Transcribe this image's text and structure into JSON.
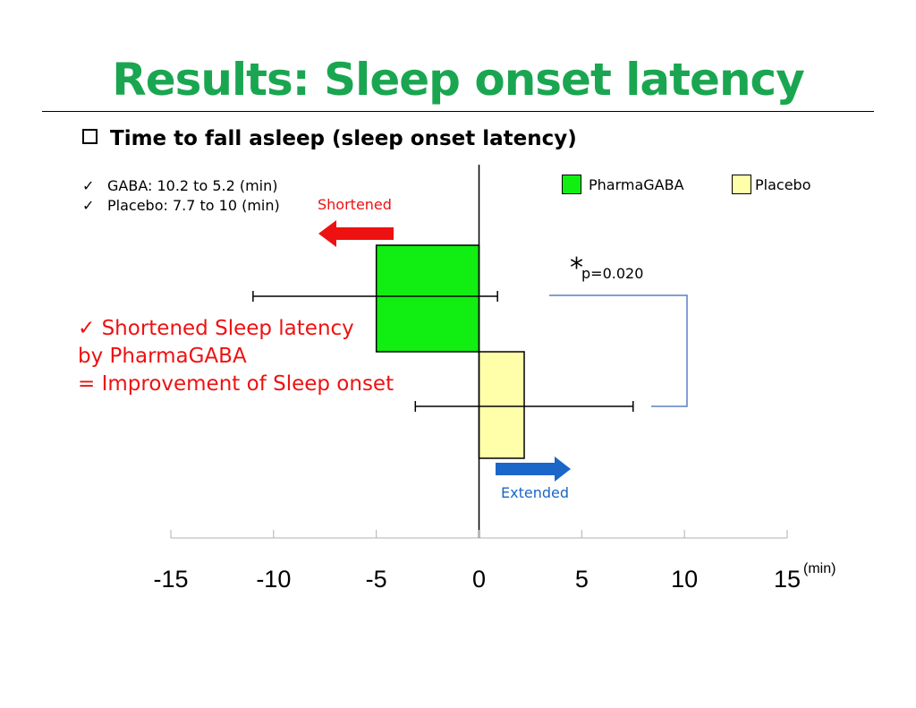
{
  "slide": {
    "title": "Results: Sleep onset latency",
    "subtitle": "Time to fall asleep (sleep onset latency)",
    "notes": [
      "GABA: 10.2 to 5.2 (min)",
      "Placebo: 7.7 to 10 (min)"
    ],
    "check_mark": "✓",
    "conclusion": {
      "line1": "✓  Shortened Sleep latency",
      "line2": "by PharmaGABA",
      "line3": "= Improvement of Sleep onset"
    },
    "shortened_label": "Shortened",
    "extended_label": "Extended",
    "significance": {
      "star": "*",
      "p": "p=0.020"
    },
    "colors": {
      "title": "#1aa651",
      "conclusion": "#ee1111",
      "shortened": "#ee1111",
      "extended": "#1a66c9",
      "bracket": "#5b7fc4"
    }
  },
  "chart_data": {
    "type": "bar",
    "orientation": "horizontal",
    "categories": [
      "PharmaGABA",
      "Placebo"
    ],
    "series": [
      {
        "name": "PharmaGABA",
        "value": -5.0,
        "error_low": -11.0,
        "error_high": 0.9,
        "color": "#11ee11"
      },
      {
        "name": "Placebo",
        "value": 2.2,
        "error_low": -3.1,
        "error_high": 7.5,
        "color": "#ffffaa"
      }
    ],
    "xlim": [
      -15,
      15
    ],
    "xticks": [
      "-15",
      "-10",
      "-5",
      "0",
      "5",
      "10",
      "15"
    ],
    "xunit": "(min)",
    "legend": "top-right"
  }
}
